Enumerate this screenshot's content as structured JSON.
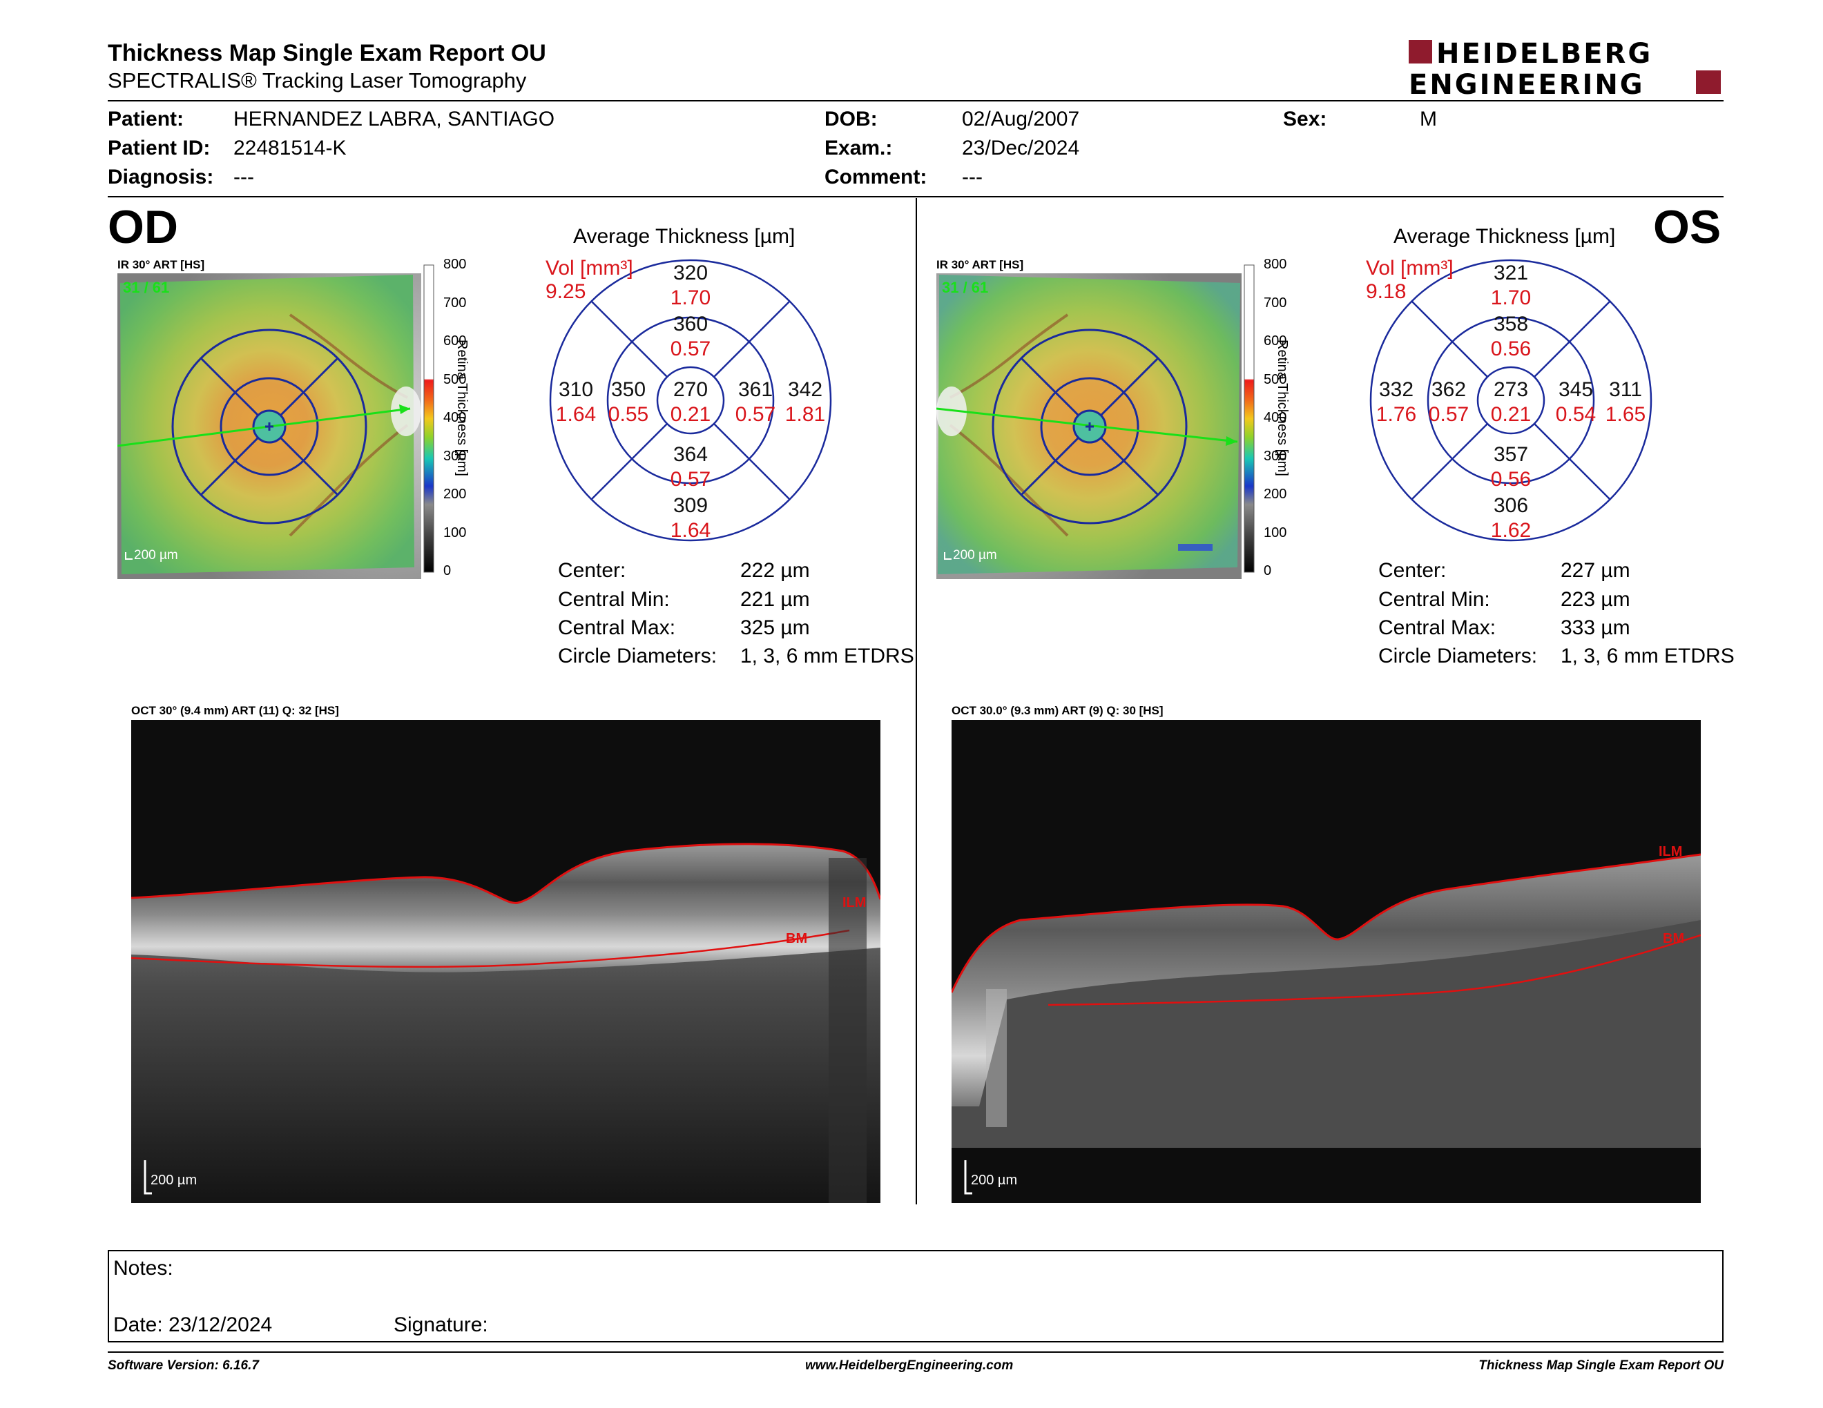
{
  "header": {
    "title": "Thickness Map Single Exam Report OU",
    "subtitle": "SPECTRALIS® Tracking Laser Tomography",
    "logo_line1": "HEIDELBERG",
    "logo_line2": "ENGINEERING"
  },
  "patient": {
    "patient_label": "Patient:",
    "patient_value": "HERNANDEZ LABRA, SANTIAGO",
    "id_label": "Patient ID:",
    "id_value": "22481514-K",
    "diagnosis_label": "Diagnosis:",
    "diagnosis_value": "---",
    "dob_label": "DOB:",
    "dob_value": "02/Aug/2007",
    "exam_label": "Exam.:",
    "exam_value": "23/Dec/2024",
    "comment_label": "Comment:",
    "comment_value": "---",
    "sex_label": "Sex:",
    "sex_value": "M"
  },
  "od": {
    "eye": "OD",
    "fundus_caption": "IR 30° ART [HS]",
    "fundus_overlay": "31 / 61",
    "scale_bar": "200 µm",
    "grid_title": "Average Thickness [µm]",
    "vol_label": "Vol [mm³]",
    "vol_value": "9.25",
    "sectors": {
      "outer_superior": {
        "t": "320",
        "v": "1.70"
      },
      "inner_superior": {
        "t": "360",
        "v": "0.57"
      },
      "outer_temporal_left": {
        "t": "310",
        "v": "1.64"
      },
      "inner_left": {
        "t": "350",
        "v": "0.55"
      },
      "center": {
        "t": "270",
        "v": "0.21"
      },
      "inner_right": {
        "t": "361",
        "v": "0.57"
      },
      "outer_right": {
        "t": "342",
        "v": "1.81"
      },
      "inner_inferior": {
        "t": "364",
        "v": "0.57"
      },
      "outer_inferior": {
        "t": "309",
        "v": "1.64"
      }
    },
    "stats": {
      "center_label": "Center:",
      "center_value": "222 µm",
      "min_label": "Central Min:",
      "min_value": "221 µm",
      "max_label": "Central Max:",
      "max_value": "325 µm",
      "diam_label": "Circle Diameters:",
      "diam_value": "1, 3, 6 mm ETDRS"
    },
    "oct_caption": "OCT 30° (9.4 mm) ART (11) Q: 32 [HS]",
    "oct_scale": "200 µm",
    "ilm": "ILM",
    "bm": "BM"
  },
  "os": {
    "eye": "OS",
    "fundus_caption": "IR 30° ART [HS]",
    "fundus_overlay": "31 / 61",
    "scale_bar": "200 µm",
    "grid_title": "Average Thickness [µm]",
    "vol_label": "Vol [mm³]",
    "vol_value": "9.18",
    "sectors": {
      "outer_superior": {
        "t": "321",
        "v": "1.70"
      },
      "inner_superior": {
        "t": "358",
        "v": "0.56"
      },
      "outer_temporal_left": {
        "t": "332",
        "v": "1.76"
      },
      "inner_left": {
        "t": "362",
        "v": "0.57"
      },
      "center": {
        "t": "273",
        "v": "0.21"
      },
      "inner_right": {
        "t": "345",
        "v": "0.54"
      },
      "outer_right": {
        "t": "311",
        "v": "1.65"
      },
      "inner_inferior": {
        "t": "357",
        "v": "0.56"
      },
      "outer_inferior": {
        "t": "306",
        "v": "1.62"
      }
    },
    "stats": {
      "center_label": "Center:",
      "center_value": "227 µm",
      "min_label": "Central Min:",
      "min_value": "223 µm",
      "max_label": "Central Max:",
      "max_value": "333 µm",
      "diam_label": "Circle Diameters:",
      "diam_value": "1, 3, 6 mm ETDRS"
    },
    "oct_caption": "OCT 30.0° (9.3 mm) ART (9) Q: 30 [HS]",
    "oct_scale": "200 µm",
    "ilm": "ILM",
    "bm": "BM"
  },
  "color_scale": {
    "ticks": [
      "800",
      "700",
      "600",
      "500",
      "400",
      "300",
      "200",
      "100",
      "0"
    ],
    "label": "Retina Thickness [µm]"
  },
  "notes": {
    "notes_label": "Notes:",
    "date_label": "Date: 23/12/2024",
    "signature_label": "Signature:"
  },
  "footer": {
    "software": "Software Version: 6.16.7",
    "website": "www.HeidelbergEngineering.com",
    "report": "Thickness Map Single Exam Report OU"
  },
  "colors": {
    "brand_red": "#8f1b2d",
    "value_red": "#d9151b",
    "grid_blue": "#1a2a9c",
    "ilm_red": "#e01010"
  }
}
